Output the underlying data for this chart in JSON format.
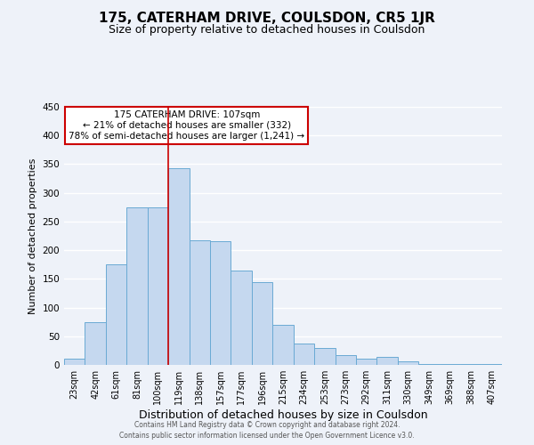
{
  "title": "175, CATERHAM DRIVE, COULSDON, CR5 1JR",
  "subtitle": "Size of property relative to detached houses in Coulsdon",
  "xlabel": "Distribution of detached houses by size in Coulsdon",
  "ylabel": "Number of detached properties",
  "bar_labels": [
    "23sqm",
    "42sqm",
    "61sqm",
    "81sqm",
    "100sqm",
    "119sqm",
    "138sqm",
    "157sqm",
    "177sqm",
    "196sqm",
    "215sqm",
    "234sqm",
    "253sqm",
    "273sqm",
    "292sqm",
    "311sqm",
    "330sqm",
    "349sqm",
    "369sqm",
    "388sqm",
    "407sqm"
  ],
  "bar_values": [
    11,
    75,
    175,
    275,
    275,
    343,
    218,
    215,
    165,
    145,
    70,
    37,
    29,
    17,
    11,
    14,
    6,
    1,
    1,
    1,
    1
  ],
  "bar_color": "#c5d8ef",
  "bar_edge_color": "#6aaad4",
  "highlight_line_color": "#cc0000",
  "annotation_title": "175 CATERHAM DRIVE: 107sqm",
  "annotation_line1": "← 21% of detached houses are smaller (332)",
  "annotation_line2": "78% of semi-detached houses are larger (1,241) →",
  "annotation_box_color": "#ffffff",
  "annotation_box_edge": "#cc0000",
  "ylim": [
    0,
    450
  ],
  "yticks": [
    0,
    50,
    100,
    150,
    200,
    250,
    300,
    350,
    400,
    450
  ],
  "footer1": "Contains HM Land Registry data © Crown copyright and database right 2024.",
  "footer2": "Contains public sector information licensed under the Open Government Licence v3.0.",
  "bg_color": "#eef2f9",
  "grid_color": "#ffffff",
  "title_fontsize": 11,
  "subtitle_fontsize": 9,
  "tick_label_fontsize": 7,
  "ylabel_fontsize": 8,
  "xlabel_fontsize": 9,
  "footer_fontsize": 5.5
}
